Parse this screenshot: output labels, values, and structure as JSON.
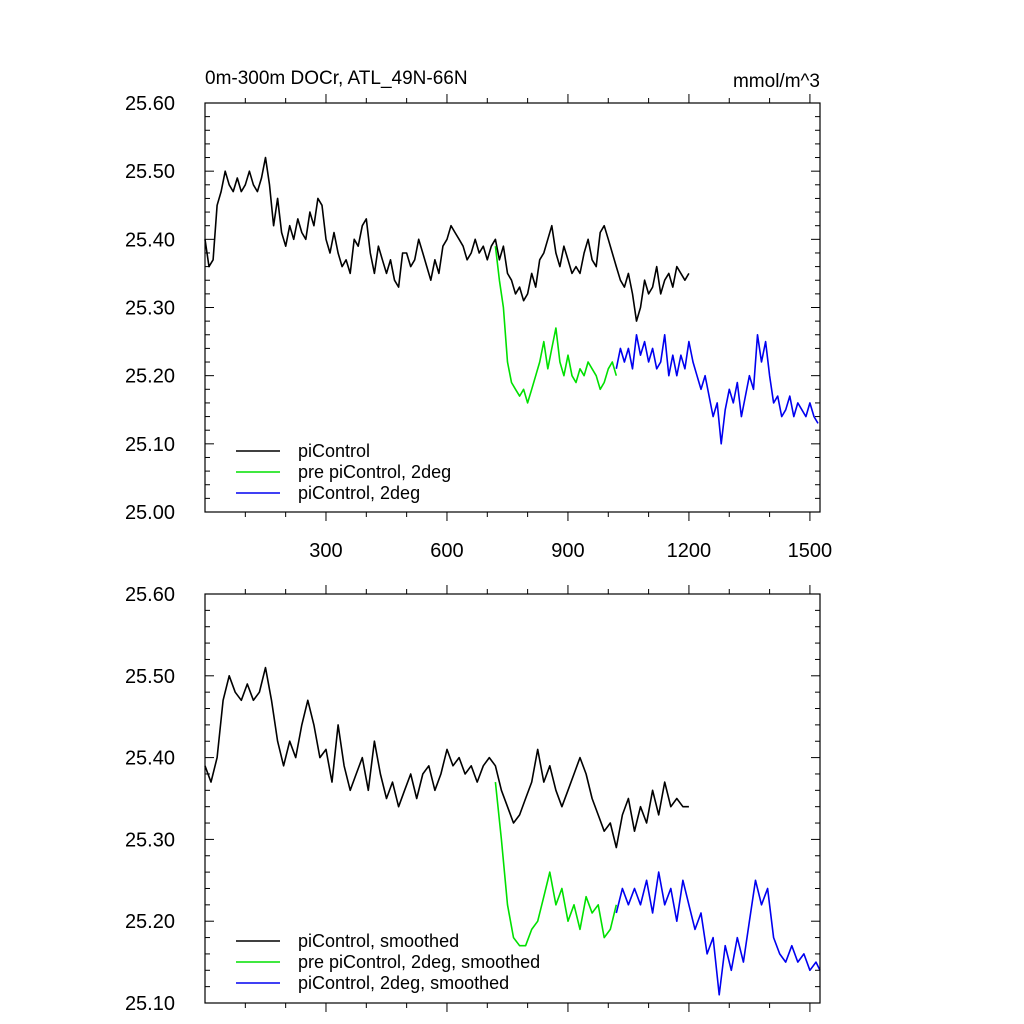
{
  "figure": {
    "title_left": "0m-300m DOCr, ATL_49N-66N",
    "title_right": "mmol/m^3"
  },
  "chart_data": [
    {
      "type": "line",
      "xlim": [
        0,
        1525
      ],
      "ylim": [
        25.0,
        25.6
      ],
      "yticks": [
        25.0,
        25.1,
        25.2,
        25.3,
        25.4,
        25.5,
        25.6
      ],
      "ytick_labels": [
        "25.00",
        "25.10",
        "25.20",
        "25.30",
        "25.40",
        "25.50",
        "25.60"
      ],
      "xticks": [
        300,
        600,
        900,
        1200,
        1500
      ],
      "xtick_labels": [
        "300",
        "600",
        "900",
        "1200",
        "1500"
      ],
      "legend_position": "bottom-left",
      "grid": false,
      "series": [
        {
          "name": "piControl",
          "color": "#000000",
          "x": [
            0,
            10,
            20,
            30,
            40,
            50,
            60,
            70,
            80,
            90,
            100,
            110,
            120,
            130,
            140,
            150,
            160,
            170,
            180,
            190,
            200,
            210,
            220,
            230,
            240,
            250,
            260,
            270,
            280,
            290,
            300,
            310,
            320,
            330,
            340,
            350,
            360,
            370,
            380,
            390,
            400,
            410,
            420,
            430,
            440,
            450,
            460,
            470,
            480,
            490,
            500,
            510,
            520,
            530,
            540,
            550,
            560,
            570,
            580,
            590,
            600,
            610,
            620,
            630,
            640,
            650,
            660,
            670,
            680,
            690,
            700,
            710,
            720,
            730,
            740,
            750,
            760,
            770,
            780,
            790,
            800,
            810,
            820,
            830,
            840,
            850,
            860,
            870,
            880,
            890,
            900,
            910,
            920,
            930,
            940,
            950,
            960,
            970,
            980,
            990,
            1000,
            1010,
            1020,
            1030,
            1040,
            1050,
            1060,
            1070,
            1080,
            1090,
            1100,
            1110,
            1120,
            1130,
            1140,
            1150,
            1160,
            1170,
            1180,
            1190,
            1200
          ],
          "y": [
            25.4,
            25.36,
            25.37,
            25.45,
            25.47,
            25.5,
            25.48,
            25.47,
            25.49,
            25.47,
            25.48,
            25.5,
            25.48,
            25.47,
            25.49,
            25.52,
            25.48,
            25.42,
            25.46,
            25.41,
            25.39,
            25.42,
            25.4,
            25.43,
            25.41,
            25.4,
            25.44,
            25.42,
            25.46,
            25.45,
            25.4,
            25.38,
            25.41,
            25.38,
            25.36,
            25.37,
            25.35,
            25.4,
            25.39,
            25.42,
            25.43,
            25.38,
            25.35,
            25.39,
            25.37,
            25.35,
            25.37,
            25.34,
            25.33,
            25.38,
            25.38,
            25.36,
            25.37,
            25.4,
            25.38,
            25.36,
            25.34,
            25.37,
            25.35,
            25.39,
            25.4,
            25.42,
            25.41,
            25.4,
            25.39,
            25.37,
            25.38,
            25.4,
            25.38,
            25.39,
            25.37,
            25.39,
            25.4,
            25.37,
            25.39,
            25.35,
            25.34,
            25.32,
            25.33,
            25.31,
            25.32,
            25.35,
            25.33,
            25.37,
            25.38,
            25.4,
            25.42,
            25.38,
            25.36,
            25.39,
            25.37,
            25.35,
            25.36,
            25.35,
            25.38,
            25.4,
            25.37,
            25.36,
            25.41,
            25.42,
            25.4,
            25.38,
            25.36,
            25.34,
            25.33,
            25.35,
            25.32,
            25.28,
            25.3,
            25.34,
            25.32,
            25.33,
            25.36,
            25.32,
            25.34,
            25.35,
            25.33,
            25.36,
            25.35,
            25.34,
            25.35
          ]
        },
        {
          "name": "pre piControl, 2deg",
          "color": "#00e000",
          "x": [
            720,
            730,
            740,
            750,
            760,
            770,
            780,
            790,
            800,
            810,
            820,
            830,
            840,
            850,
            860,
            870,
            880,
            890,
            900,
            910,
            920,
            930,
            940,
            950,
            960,
            970,
            980,
            990,
            1000,
            1010,
            1020
          ],
          "y": [
            25.39,
            25.34,
            25.3,
            25.22,
            25.19,
            25.18,
            25.17,
            25.18,
            25.16,
            25.18,
            25.2,
            25.22,
            25.25,
            25.21,
            25.24,
            25.27,
            25.22,
            25.2,
            25.23,
            25.2,
            25.19,
            25.21,
            25.2,
            25.22,
            25.21,
            25.2,
            25.18,
            25.19,
            25.21,
            25.22,
            25.2
          ]
        },
        {
          "name": "piControl, 2deg",
          "color": "#0000f0",
          "x": [
            1020,
            1030,
            1040,
            1050,
            1060,
            1070,
            1080,
            1090,
            1100,
            1110,
            1120,
            1130,
            1140,
            1150,
            1160,
            1170,
            1180,
            1190,
            1200,
            1210,
            1220,
            1230,
            1240,
            1250,
            1260,
            1270,
            1280,
            1290,
            1300,
            1310,
            1320,
            1330,
            1340,
            1350,
            1360,
            1370,
            1380,
            1390,
            1400,
            1410,
            1420,
            1430,
            1440,
            1450,
            1460,
            1470,
            1480,
            1490,
            1500,
            1510,
            1520
          ],
          "y": [
            25.21,
            25.24,
            25.22,
            25.24,
            25.21,
            25.26,
            25.23,
            25.25,
            25.22,
            25.24,
            25.21,
            25.22,
            25.26,
            25.2,
            25.23,
            25.2,
            25.23,
            25.21,
            25.25,
            25.22,
            25.2,
            25.18,
            25.2,
            25.17,
            25.14,
            25.16,
            25.1,
            25.15,
            25.18,
            25.16,
            25.19,
            25.14,
            25.17,
            25.2,
            25.18,
            25.26,
            25.22,
            25.25,
            25.2,
            25.16,
            25.17,
            25.14,
            25.15,
            25.17,
            25.14,
            25.16,
            25.15,
            25.14,
            25.16,
            25.14,
            25.13
          ]
        }
      ]
    },
    {
      "type": "line",
      "xlim": [
        0,
        1525
      ],
      "ylim": [
        25.1,
        25.6
      ],
      "yticks": [
        25.1,
        25.2,
        25.3,
        25.4,
        25.5,
        25.6
      ],
      "ytick_labels": [
        "25.10",
        "25.20",
        "25.30",
        "25.40",
        "25.50",
        "25.60"
      ],
      "xticks": [
        300,
        600,
        900,
        1200,
        1500
      ],
      "xtick_labels": [],
      "legend_position": "bottom-left",
      "grid": false,
      "series": [
        {
          "name": "piControl, smoothed",
          "color": "#000000",
          "x": [
            0,
            15,
            30,
            45,
            60,
            75,
            90,
            105,
            120,
            135,
            150,
            165,
            180,
            195,
            210,
            225,
            240,
            255,
            270,
            285,
            300,
            315,
            330,
            345,
            360,
            375,
            390,
            405,
            420,
            435,
            450,
            465,
            480,
            495,
            510,
            525,
            540,
            555,
            570,
            585,
            600,
            615,
            630,
            645,
            660,
            675,
            690,
            705,
            720,
            735,
            750,
            765,
            780,
            795,
            810,
            825,
            840,
            855,
            870,
            885,
            900,
            915,
            930,
            945,
            960,
            975,
            990,
            1005,
            1020,
            1035,
            1050,
            1065,
            1080,
            1095,
            1110,
            1125,
            1140,
            1155,
            1170,
            1185,
            1200
          ],
          "y": [
            25.39,
            25.37,
            25.4,
            25.47,
            25.5,
            25.48,
            25.47,
            25.49,
            25.47,
            25.48,
            25.51,
            25.47,
            25.42,
            25.39,
            25.42,
            25.4,
            25.44,
            25.47,
            25.44,
            25.4,
            25.41,
            25.37,
            25.44,
            25.39,
            25.36,
            25.38,
            25.4,
            25.36,
            25.42,
            25.38,
            25.35,
            25.37,
            25.34,
            25.36,
            25.38,
            25.35,
            25.38,
            25.39,
            25.36,
            25.38,
            25.41,
            25.39,
            25.4,
            25.38,
            25.39,
            25.37,
            25.39,
            25.4,
            25.39,
            25.36,
            25.34,
            25.32,
            25.33,
            25.35,
            25.37,
            25.41,
            25.37,
            25.39,
            25.36,
            25.34,
            25.36,
            25.38,
            25.4,
            25.38,
            25.35,
            25.33,
            25.31,
            25.32,
            25.29,
            25.33,
            25.35,
            25.31,
            25.34,
            25.32,
            25.36,
            25.33,
            25.37,
            25.34,
            25.35,
            25.34,
            25.34
          ]
        },
        {
          "name": "pre piControl, 2deg, smoothed",
          "color": "#00e000",
          "x": [
            720,
            735,
            750,
            765,
            780,
            795,
            810,
            825,
            840,
            855,
            870,
            885,
            900,
            915,
            930,
            945,
            960,
            975,
            990,
            1005,
            1020
          ],
          "y": [
            25.37,
            25.3,
            25.22,
            25.18,
            25.17,
            25.17,
            25.19,
            25.2,
            25.23,
            25.26,
            25.22,
            25.24,
            25.2,
            25.22,
            25.19,
            25.23,
            25.21,
            25.22,
            25.18,
            25.19,
            25.22
          ]
        },
        {
          "name": "piControl, 2deg, smoothed",
          "color": "#0000f0",
          "x": [
            1020,
            1035,
            1050,
            1065,
            1080,
            1095,
            1110,
            1125,
            1140,
            1155,
            1170,
            1185,
            1200,
            1215,
            1230,
            1245,
            1260,
            1275,
            1290,
            1305,
            1320,
            1335,
            1350,
            1365,
            1380,
            1395,
            1410,
            1425,
            1440,
            1455,
            1470,
            1485,
            1500,
            1515,
            1525
          ],
          "y": [
            25.21,
            25.24,
            25.22,
            25.24,
            25.22,
            25.25,
            25.21,
            25.26,
            25.22,
            25.24,
            25.2,
            25.25,
            25.22,
            25.19,
            25.21,
            25.16,
            25.18,
            25.11,
            25.17,
            25.14,
            25.18,
            25.15,
            25.2,
            25.25,
            25.22,
            25.24,
            25.18,
            25.16,
            25.15,
            25.17,
            25.15,
            25.16,
            25.14,
            25.15,
            25.14
          ]
        }
      ]
    }
  ]
}
